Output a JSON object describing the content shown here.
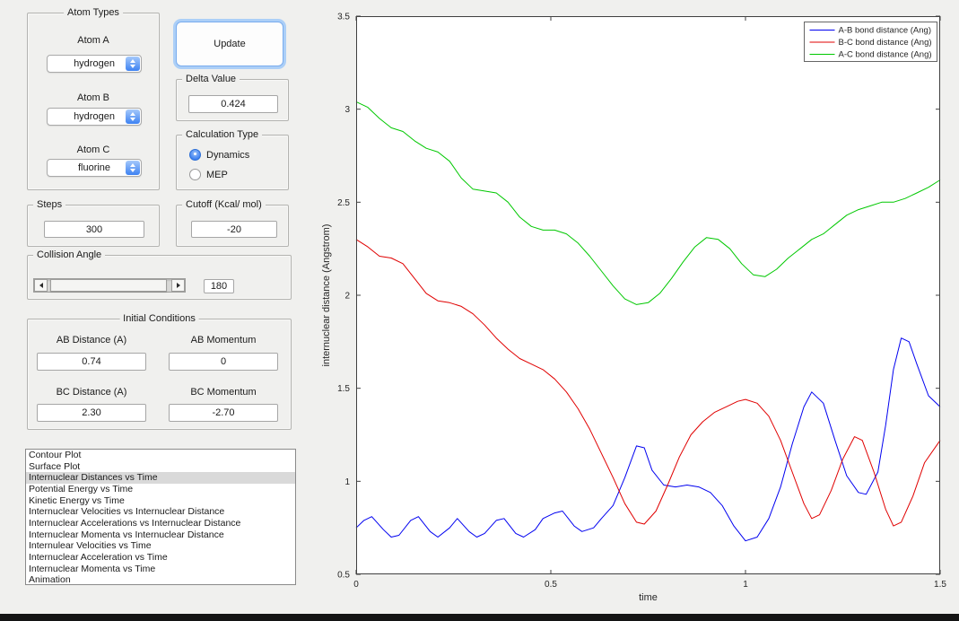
{
  "icons": {
    "combo_stepper": "updown-arrows",
    "slider_left": "left-arrow",
    "slider_right": "right-arrow"
  },
  "atom_types": {
    "title": "Atom Types",
    "fields": [
      {
        "label": "Atom A",
        "value": "hydrogen"
      },
      {
        "label": "Atom B",
        "value": "hydrogen"
      },
      {
        "label": "Atom C",
        "value": "fluorine"
      }
    ]
  },
  "update_button": {
    "label": "Update"
  },
  "delta_value": {
    "title": "Delta Value",
    "value": "0.424"
  },
  "calculation_type": {
    "title": "Calculation Type",
    "options": [
      {
        "label": "Dynamics",
        "selected": true
      },
      {
        "label": "MEP",
        "selected": false
      }
    ]
  },
  "steps": {
    "title": "Steps",
    "value": "300"
  },
  "cutoff": {
    "title": "Cutoff (Kcal/ mol)",
    "value": "-20"
  },
  "collision_angle": {
    "title": "Collision Angle",
    "value": "180"
  },
  "initial_conditions": {
    "title": "Initial Conditions",
    "fields": [
      {
        "label": "AB Distance (A)",
        "value": "0.74"
      },
      {
        "label": "AB Momentum",
        "value": "0"
      },
      {
        "label": "BC Distance (A)",
        "value": "2.30"
      },
      {
        "label": "BC Momentum",
        "value": "-2.70"
      }
    ]
  },
  "plot_list": {
    "selected_index": 2,
    "items": [
      "Contour Plot",
      "Surface Plot",
      "Internuclear Distances vs Time",
      "Potential Energy vs Time",
      "Kinetic Energy vs Time",
      "Internuclear Velocities vs Internuclear Distance",
      "Internuclear Accelerations vs Internuclear Distance",
      "Internuclear Momenta vs Internuclear Distance",
      "Internulear Velocities vs Time",
      "Internuclear Acceleration vs Time",
      "Internuclear Momenta vs Time",
      "Animation"
    ]
  },
  "chart_data": {
    "type": "line",
    "title": "",
    "xlabel": "time",
    "ylabel": "internuclear distance (Angstrom)",
    "xlim": [
      0,
      1.5
    ],
    "ylim": [
      0.5,
      3.5
    ],
    "xticks": [
      0,
      0.5,
      1,
      1.5
    ],
    "yticks": [
      0.5,
      1,
      1.5,
      2,
      2.5,
      3,
      3.5
    ],
    "grid": false,
    "legend_position": "top-right",
    "series": [
      {
        "name": "A-B bond distance (Ang)",
        "color": "#0000f0",
        "x": [
          0,
          0.02,
          0.04,
          0.07,
          0.09,
          0.11,
          0.14,
          0.16,
          0.19,
          0.21,
          0.24,
          0.26,
          0.29,
          0.31,
          0.33,
          0.36,
          0.38,
          0.41,
          0.43,
          0.46,
          0.48,
          0.51,
          0.53,
          0.56,
          0.58,
          0.61,
          0.63,
          0.66,
          0.69,
          0.72,
          0.74,
          0.76,
          0.79,
          0.82,
          0.85,
          0.88,
          0.91,
          0.94,
          0.97,
          1.0,
          1.03,
          1.06,
          1.09,
          1.12,
          1.15,
          1.17,
          1.2,
          1.23,
          1.26,
          1.29,
          1.31,
          1.34,
          1.36,
          1.38,
          1.4,
          1.42,
          1.44,
          1.47,
          1.5
        ],
        "y": [
          0.75,
          0.79,
          0.81,
          0.74,
          0.7,
          0.71,
          0.79,
          0.81,
          0.73,
          0.7,
          0.75,
          0.8,
          0.73,
          0.7,
          0.72,
          0.79,
          0.8,
          0.72,
          0.7,
          0.74,
          0.8,
          0.83,
          0.84,
          0.76,
          0.73,
          0.75,
          0.8,
          0.87,
          1.02,
          1.19,
          1.18,
          1.06,
          0.98,
          0.97,
          0.98,
          0.97,
          0.94,
          0.87,
          0.76,
          0.68,
          0.7,
          0.8,
          0.97,
          1.2,
          1.4,
          1.48,
          1.42,
          1.22,
          1.03,
          0.94,
          0.93,
          1.05,
          1.3,
          1.6,
          1.77,
          1.75,
          1.63,
          1.46,
          1.4
        ]
      },
      {
        "name": "B-C bond distance (Ang)",
        "color": "#e00000",
        "x": [
          0,
          0.03,
          0.06,
          0.09,
          0.12,
          0.15,
          0.18,
          0.21,
          0.24,
          0.27,
          0.3,
          0.33,
          0.36,
          0.39,
          0.42,
          0.45,
          0.48,
          0.51,
          0.54,
          0.57,
          0.6,
          0.63,
          0.66,
          0.69,
          0.72,
          0.74,
          0.77,
          0.8,
          0.83,
          0.86,
          0.89,
          0.92,
          0.95,
          0.98,
          1.0,
          1.03,
          1.06,
          1.09,
          1.12,
          1.15,
          1.17,
          1.19,
          1.22,
          1.25,
          1.28,
          1.3,
          1.33,
          1.36,
          1.38,
          1.4,
          1.43,
          1.46,
          1.5
        ],
        "y": [
          2.3,
          2.26,
          2.21,
          2.2,
          2.17,
          2.09,
          2.01,
          1.97,
          1.96,
          1.94,
          1.9,
          1.84,
          1.77,
          1.71,
          1.66,
          1.63,
          1.6,
          1.55,
          1.48,
          1.39,
          1.28,
          1.15,
          1.02,
          0.88,
          0.78,
          0.77,
          0.84,
          0.98,
          1.13,
          1.25,
          1.32,
          1.37,
          1.4,
          1.43,
          1.44,
          1.42,
          1.35,
          1.22,
          1.05,
          0.88,
          0.8,
          0.82,
          0.95,
          1.12,
          1.24,
          1.22,
          1.05,
          0.85,
          0.76,
          0.78,
          0.92,
          1.1,
          1.22
        ]
      },
      {
        "name": "A-C bond distance (Ang)",
        "color": "#00c800",
        "x": [
          0,
          0.03,
          0.06,
          0.09,
          0.12,
          0.15,
          0.18,
          0.21,
          0.24,
          0.27,
          0.3,
          0.33,
          0.36,
          0.39,
          0.42,
          0.45,
          0.48,
          0.51,
          0.54,
          0.57,
          0.6,
          0.63,
          0.66,
          0.69,
          0.72,
          0.75,
          0.78,
          0.81,
          0.84,
          0.87,
          0.9,
          0.93,
          0.96,
          0.99,
          1.02,
          1.05,
          1.08,
          1.11,
          1.14,
          1.17,
          1.2,
          1.23,
          1.26,
          1.29,
          1.32,
          1.35,
          1.38,
          1.41,
          1.44,
          1.47,
          1.5
        ],
        "y": [
          3.04,
          3.01,
          2.95,
          2.9,
          2.88,
          2.83,
          2.79,
          2.77,
          2.72,
          2.63,
          2.57,
          2.56,
          2.55,
          2.5,
          2.42,
          2.37,
          2.35,
          2.35,
          2.33,
          2.28,
          2.21,
          2.13,
          2.05,
          1.98,
          1.95,
          1.96,
          2.01,
          2.09,
          2.18,
          2.26,
          2.31,
          2.3,
          2.25,
          2.17,
          2.11,
          2.1,
          2.14,
          2.2,
          2.25,
          2.3,
          2.33,
          2.38,
          2.43,
          2.46,
          2.48,
          2.5,
          2.5,
          2.52,
          2.55,
          2.58,
          2.62
        ]
      }
    ]
  }
}
